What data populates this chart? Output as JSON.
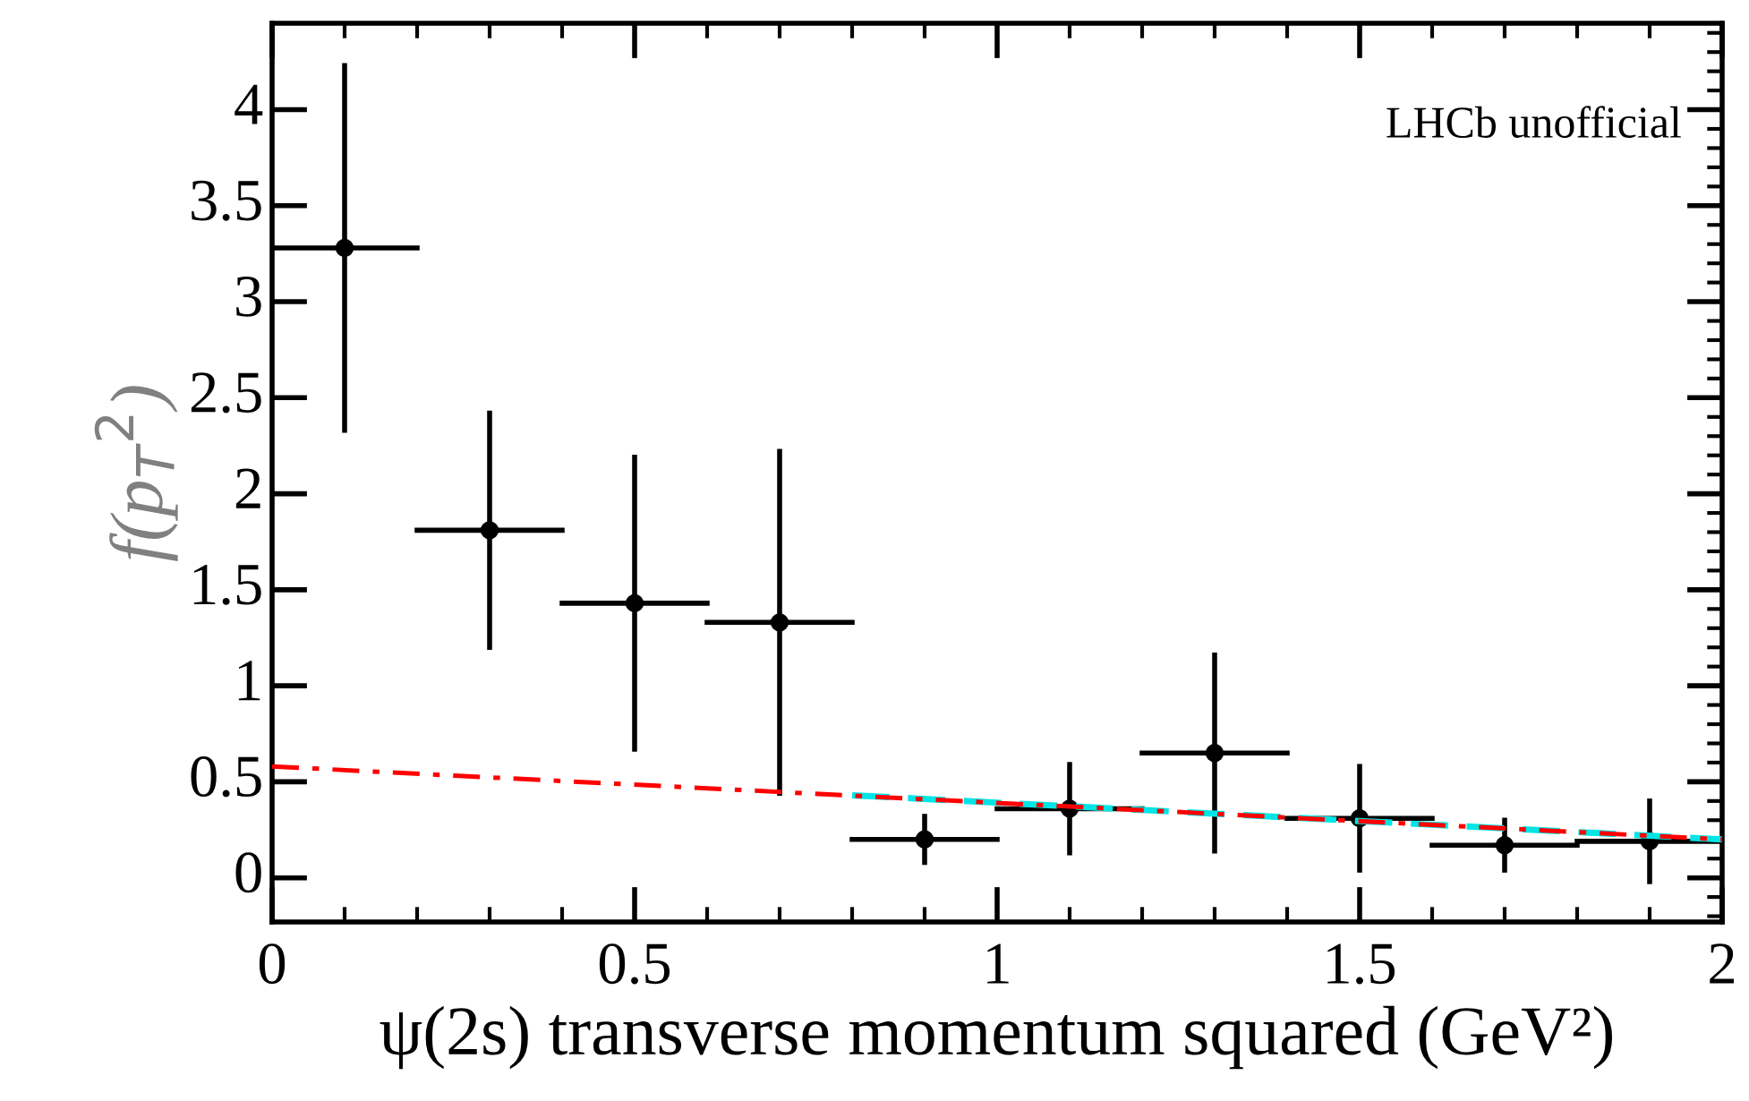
{
  "chart_data": {
    "type": "scatter",
    "xlabel": "ψ(2s) transverse momentum squared (GeV²)",
    "ylabel": "f(p$_{T}$$^{2}$)",
    "annotations": [
      "LHCb unofficial"
    ],
    "x": [
      0.1,
      0.3,
      0.5,
      0.7,
      0.9,
      1.1,
      1.3,
      1.5,
      1.7,
      1.9
    ],
    "series": [
      {
        "type": "line",
        "color": "#00e5e5",
        "line_style": "dashed",
        "marker": "none",
        "x": [
          0.8,
          2.0
        ],
        "values": [
          0.43,
          0.2
        ]
      },
      {
        "type": "line",
        "color": "#ff0000",
        "line_style": "dashdot",
        "marker": "none",
        "x": [
          0.0,
          2.0
        ],
        "values": [
          0.58,
          0.2
        ]
      },
      {
        "color": "#000000",
        "marker": "circle",
        "values": [
          3.28,
          1.81,
          1.43,
          1.33,
          0.2,
          0.36,
          0.65,
          0.31,
          0.17,
          0.19
        ],
        "errors": [
          0.95,
          0.61,
          0.76,
          0.89,
          0.12,
          0.23,
          0.51,
          0.27,
          0.13,
          0.21
        ],
        "xerrors": [
          0.1,
          0.1,
          0.1,
          0.1,
          0.1,
          0.1,
          0.1,
          0.1,
          0.1,
          0.1
        ]
      }
    ],
    "xlim": [
      0,
      2
    ],
    "xticks": [
      0,
      0.5,
      1,
      1.5,
      2
    ],
    "ylim": [
      -0.23,
      4.45
    ],
    "yticks": [
      0,
      0.5,
      1,
      1.5,
      2,
      2.5,
      3,
      3.5,
      4
    ],
    "grid": false,
    "legend": false
  }
}
